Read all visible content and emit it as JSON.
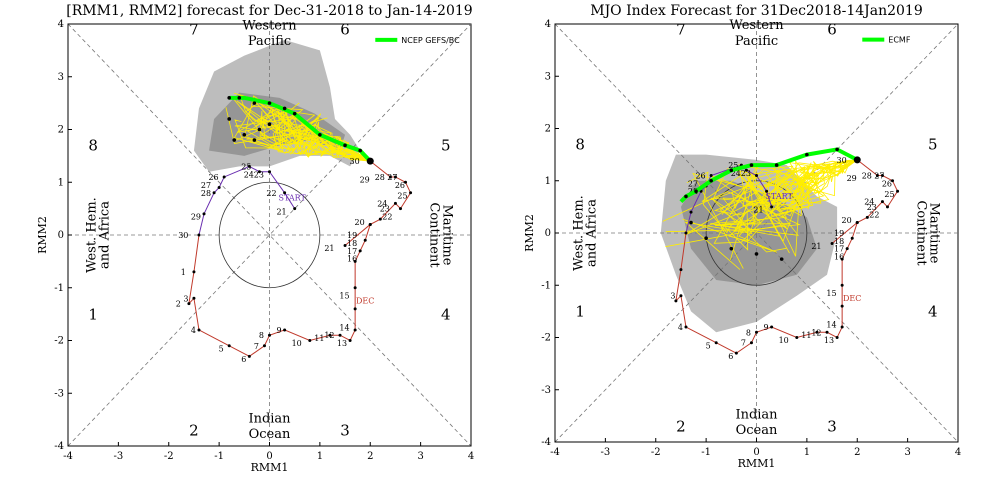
{
  "panels": [
    {
      "id": "left",
      "title": "[RMM1, RMM2] forecast for Dec-31-2018 to Jan-14-2019",
      "xlabel": "RMM1",
      "ylabel": "RMM2",
      "legend": "NCEP GEFS/BC",
      "xlim": [
        -4,
        4
      ],
      "ylim": [
        -4,
        4
      ],
      "xticks": [
        "-4",
        "-3",
        "-2",
        "-1",
        "0",
        "1",
        "2",
        "3",
        "4"
      ],
      "yticks": [
        "-4",
        "-3",
        "-2",
        "-1",
        "0",
        "1",
        "2",
        "3",
        "4"
      ],
      "phases": [
        "1",
        "2",
        "3",
        "4",
        "5",
        "6",
        "7",
        "8"
      ],
      "regions": {
        "top": [
          "Western",
          "Pacific"
        ],
        "bottom": [
          "Indian",
          "Ocean"
        ],
        "left": [
          "West. Hem.",
          "and Africa"
        ],
        "right": [
          "Maritime",
          "Continent"
        ]
      },
      "annotations": {
        "start": "START",
        "dec": "DEC"
      },
      "spread_outer": [
        [
          -1.5,
          1.6
        ],
        [
          -1.4,
          2.4
        ],
        [
          -1.1,
          3.1
        ],
        [
          -0.5,
          3.4
        ],
        [
          0.3,
          3.7
        ],
        [
          1.0,
          3.5
        ],
        [
          1.2,
          2.8
        ],
        [
          1.3,
          2.2
        ],
        [
          1.6,
          1.9
        ],
        [
          1.8,
          1.6
        ],
        [
          1.6,
          1.3
        ],
        [
          1.2,
          1.5
        ],
        [
          0.6,
          1.5
        ],
        [
          0.0,
          1.3
        ],
        [
          -0.6,
          1.3
        ],
        [
          -1.2,
          1.2
        ]
      ],
      "spread_inner": [
        [
          -1.2,
          1.6
        ],
        [
          -1.1,
          2.2
        ],
        [
          -0.6,
          2.7
        ],
        [
          0.2,
          2.6
        ],
        [
          0.9,
          2.3
        ],
        [
          1.5,
          1.9
        ],
        [
          1.4,
          1.6
        ],
        [
          0.8,
          1.8
        ],
        [
          0.2,
          1.7
        ],
        [
          -0.5,
          1.5
        ]
      ],
      "obs_days": [
        "21",
        "22",
        "23",
        "24",
        "25",
        "26",
        "27",
        "28",
        "29",
        "30",
        "1",
        "2",
        "3",
        "4",
        "5",
        "6",
        "7",
        "8",
        "9",
        "10",
        "11",
        "12",
        "13",
        "14",
        "15",
        "16",
        "17",
        "18",
        "19",
        "20",
        "21",
        "22",
        "23",
        "24",
        "25",
        "26",
        "27",
        "28",
        "29",
        "30"
      ],
      "obs_path": [
        [
          0.5,
          0.5
        ],
        [
          0.3,
          0.8
        ],
        [
          0.0,
          1.2
        ],
        [
          -0.2,
          1.2
        ],
        [
          -0.4,
          1.3
        ],
        [
          -0.9,
          1.1
        ],
        [
          -1.0,
          0.9
        ],
        [
          -1.1,
          0.8
        ],
        [
          -1.3,
          0.4
        ],
        [
          -1.4,
          0.0
        ],
        [
          -1.5,
          -0.7
        ],
        [
          -1.6,
          -1.3
        ],
        [
          -1.5,
          -1.2
        ],
        [
          -1.4,
          -1.8
        ],
        [
          -0.8,
          -2.1
        ],
        [
          -0.4,
          -2.3
        ],
        [
          -0.1,
          -2.1
        ],
        [
          0.0,
          -1.9
        ],
        [
          0.3,
          -1.8
        ],
        [
          0.8,
          -2.0
        ],
        [
          1.2,
          -1.9
        ],
        [
          1.4,
          -1.9
        ],
        [
          1.6,
          -2.0
        ],
        [
          1.7,
          -1.8
        ],
        [
          1.7,
          -1.4
        ],
        [
          1.7,
          -1.0
        ],
        [
          1.7,
          -0.5
        ],
        [
          1.8,
          -0.3
        ],
        [
          1.9,
          -0.1
        ],
        [
          2.0,
          0.2
        ],
        [
          1.5,
          -0.2
        ],
        [
          2.0,
          0.2
        ],
        [
          2.2,
          0.3
        ],
        [
          2.5,
          0.6
        ],
        [
          2.6,
          0.5
        ],
        [
          2.8,
          0.8
        ],
        [
          2.7,
          1.0
        ],
        [
          2.5,
          1.1
        ],
        [
          2.4,
          1.1
        ],
        [
          2.0,
          1.4
        ]
      ],
      "obs_labels": [
        {
          "t": "21",
          "x": 0.4,
          "y": 0.45
        },
        {
          "t": "22",
          "x": 0.2,
          "y": 0.8
        },
        {
          "t": "23",
          "x": -0.05,
          "y": 1.15
        },
        {
          "t": "24",
          "x": -0.25,
          "y": 1.15
        },
        {
          "t": "25",
          "x": -0.3,
          "y": 1.3
        },
        {
          "t": "26",
          "x": -0.95,
          "y": 1.1
        },
        {
          "t": "27",
          "x": -1.1,
          "y": 0.95
        },
        {
          "t": "28",
          "x": -1.1,
          "y": 0.8
        },
        {
          "t": "29",
          "x": -1.3,
          "y": 0.35
        },
        {
          "t": "30",
          "x": -1.55,
          "y": 0.0
        },
        {
          "t": "1",
          "x": -1.6,
          "y": -0.7
        },
        {
          "t": "2",
          "x": -1.7,
          "y": -1.3
        },
        {
          "t": "3",
          "x": -1.55,
          "y": -1.2
        },
        {
          "t": "4",
          "x": -1.4,
          "y": -1.8
        },
        {
          "t": "5",
          "x": -0.85,
          "y": -2.15
        },
        {
          "t": "6",
          "x": -0.4,
          "y": -2.35
        },
        {
          "t": "7",
          "x": -0.15,
          "y": -2.1
        },
        {
          "t": "8",
          "x": -0.05,
          "y": -1.9
        },
        {
          "t": "9",
          "x": 0.3,
          "y": -1.8
        },
        {
          "t": "10",
          "x": 0.7,
          "y": -2.05
        },
        {
          "t": "11",
          "x": 1.15,
          "y": -1.95
        },
        {
          "t": "12",
          "x": 1.35,
          "y": -1.9
        },
        {
          "t": "13",
          "x": 1.6,
          "y": -2.05
        },
        {
          "t": "14",
          "x": 1.65,
          "y": -1.75
        },
        {
          "t": "15",
          "x": 1.65,
          "y": -1.15
        },
        {
          "t": "16",
          "x": 1.8,
          "y": -0.45
        },
        {
          "t": "17",
          "x": 1.8,
          "y": -0.3
        },
        {
          "t": "18",
          "x": 1.8,
          "y": -0.15
        },
        {
          "t": "19",
          "x": 1.8,
          "y": 0.0
        },
        {
          "t": "20",
          "x": 1.95,
          "y": 0.25
        },
        {
          "t": "21",
          "x": 1.35,
          "y": -0.25
        },
        {
          "t": "22",
          "x": 2.5,
          "y": 0.35
        },
        {
          "t": "23",
          "x": 2.45,
          "y": 0.5
        },
        {
          "t": "24",
          "x": 2.4,
          "y": 0.6
        },
        {
          "t": "25",
          "x": 2.8,
          "y": 0.75
        },
        {
          "t": "26",
          "x": 2.75,
          "y": 0.95
        },
        {
          "t": "27",
          "x": 2.6,
          "y": 1.1
        },
        {
          "t": "28",
          "x": 2.35,
          "y": 1.1
        },
        {
          "t": "29",
          "x": 2.05,
          "y": 1.05
        },
        {
          "t": "30",
          "x": 1.85,
          "y": 1.4
        }
      ],
      "forecast_path": [
        [
          2.0,
          1.4
        ],
        [
          1.8,
          1.6
        ],
        [
          1.5,
          1.7
        ],
        [
          1.0,
          1.9
        ],
        [
          0.5,
          2.3
        ],
        [
          0.0,
          2.5
        ],
        [
          -0.5,
          2.6
        ],
        [
          -0.7,
          2.6
        ],
        [
          -0.8,
          2.6
        ]
      ],
      "forecast_dots": [
        [
          2.0,
          1.4
        ],
        [
          1.8,
          1.6
        ],
        [
          1.5,
          1.7
        ],
        [
          1.0,
          1.9
        ],
        [
          0.5,
          2.3
        ],
        [
          0.3,
          2.4
        ],
        [
          0.0,
          2.5
        ],
        [
          -0.3,
          2.5
        ],
        [
          -0.6,
          2.6
        ],
        [
          -0.8,
          2.6
        ],
        [
          -0.8,
          2.2
        ],
        [
          -0.5,
          1.9
        ],
        [
          0.0,
          2.1
        ],
        [
          -0.3,
          1.8
        ],
        [
          -0.7,
          1.8
        ],
        [
          -0.2,
          2.0
        ]
      ],
      "spaghetti_center": [
        -0.2,
        2.2
      ],
      "spaghetti_spread": 0.8
    },
    {
      "id": "right",
      "title": "MJO Index Forecast for 31Dec2018-14Jan2019",
      "xlabel": "RMM1",
      "ylabel": "RMM2",
      "legend": "ECMF",
      "xlim": [
        -4,
        4
      ],
      "ylim": [
        -4,
        4
      ],
      "xticks": [
        "-4",
        "-3",
        "-2",
        "-1",
        "0",
        "1",
        "2",
        "3",
        "4"
      ],
      "yticks": [
        "-4",
        "-3",
        "-2",
        "-1",
        "0",
        "1",
        "2",
        "3",
        "4"
      ],
      "phases": [
        "1",
        "2",
        "3",
        "4",
        "5",
        "6",
        "7",
        "8"
      ],
      "regions": {
        "top": [
          "Western",
          "Pacific"
        ],
        "bottom": [
          "Indian",
          "Ocean"
        ],
        "left": [
          "West. Hem.",
          "and Africa"
        ],
        "right": [
          "Maritime",
          "Continent"
        ]
      },
      "annotations": {
        "start": "START",
        "dec": "DEC"
      },
      "spread_outer": [
        [
          -1.8,
          1.0
        ],
        [
          -1.6,
          1.5
        ],
        [
          -1.0,
          1.5
        ],
        [
          0.0,
          1.4
        ],
        [
          0.6,
          1.3
        ],
        [
          1.2,
          0.7
        ],
        [
          1.6,
          0.5
        ],
        [
          1.6,
          0.0
        ],
        [
          1.4,
          -0.8
        ],
        [
          0.8,
          -1.2
        ],
        [
          0.0,
          -1.7
        ],
        [
          -0.8,
          -1.9
        ],
        [
          -1.3,
          -1.5
        ],
        [
          -1.6,
          -0.8
        ],
        [
          -1.9,
          0.0
        ]
      ],
      "spread_inner": [
        [
          -1.5,
          0.5
        ],
        [
          -1.2,
          1.0
        ],
        [
          -0.5,
          1.0
        ],
        [
          0.3,
          0.7
        ],
        [
          1.0,
          0.3
        ],
        [
          1.2,
          -0.3
        ],
        [
          0.8,
          -0.8
        ],
        [
          0.0,
          -1.0
        ],
        [
          -0.8,
          -0.9
        ],
        [
          -1.3,
          -0.3
        ]
      ],
      "obs_days": [],
      "obs_path": [
        [
          0.3,
          0.5
        ],
        [
          0.2,
          0.8
        ],
        [
          0.0,
          1.1
        ],
        [
          -0.2,
          1.2
        ],
        [
          -0.3,
          1.3
        ],
        [
          -0.9,
          1.1
        ],
        [
          -1.0,
          0.9
        ],
        [
          -1.1,
          0.8
        ],
        [
          -1.3,
          0.4
        ],
        [
          -1.4,
          0.0
        ],
        [
          -1.5,
          -0.7
        ],
        [
          -1.6,
          -1.3
        ],
        [
          -1.5,
          -1.2
        ],
        [
          -1.4,
          -1.8
        ],
        [
          -0.8,
          -2.1
        ],
        [
          -0.4,
          -2.3
        ],
        [
          -0.1,
          -2.1
        ],
        [
          0.0,
          -1.9
        ],
        [
          0.3,
          -1.8
        ],
        [
          0.8,
          -2.0
        ],
        [
          1.2,
          -1.9
        ],
        [
          1.4,
          -1.9
        ],
        [
          1.6,
          -2.0
        ],
        [
          1.7,
          -1.8
        ],
        [
          1.7,
          -1.4
        ],
        [
          1.7,
          -1.0
        ],
        [
          1.7,
          -0.5
        ],
        [
          1.8,
          -0.3
        ],
        [
          1.9,
          -0.1
        ],
        [
          2.0,
          0.2
        ],
        [
          1.5,
          -0.2
        ],
        [
          2.0,
          0.2
        ],
        [
          2.2,
          0.3
        ],
        [
          2.5,
          0.6
        ],
        [
          2.6,
          0.5
        ],
        [
          2.8,
          0.8
        ],
        [
          2.7,
          1.0
        ],
        [
          2.5,
          1.1
        ],
        [
          2.4,
          1.1
        ],
        [
          2.0,
          1.4
        ]
      ],
      "obs_labels": [
        {
          "t": "21",
          "x": 0.2,
          "y": 0.45
        },
        {
          "t": "23",
          "x": -0.05,
          "y": 1.15
        },
        {
          "t": "24",
          "x": -0.25,
          "y": 1.15
        },
        {
          "t": "25",
          "x": -0.3,
          "y": 1.3
        },
        {
          "t": "26",
          "x": -0.95,
          "y": 1.1
        },
        {
          "t": "27",
          "x": -1.1,
          "y": 0.95
        },
        {
          "t": "28",
          "x": -1.1,
          "y": 0.8
        },
        {
          "t": "3",
          "x": -1.55,
          "y": -1.2
        },
        {
          "t": "4",
          "x": -1.4,
          "y": -1.8
        },
        {
          "t": "5",
          "x": -0.85,
          "y": -2.15
        },
        {
          "t": "6",
          "x": -0.4,
          "y": -2.35
        },
        {
          "t": "7",
          "x": -0.15,
          "y": -2.1
        },
        {
          "t": "8",
          "x": -0.05,
          "y": -1.9
        },
        {
          "t": "9",
          "x": 0.3,
          "y": -1.8
        },
        {
          "t": "10",
          "x": 0.7,
          "y": -2.05
        },
        {
          "t": "11",
          "x": 1.15,
          "y": -1.95
        },
        {
          "t": "12",
          "x": 1.35,
          "y": -1.9
        },
        {
          "t": "13",
          "x": 1.6,
          "y": -2.05
        },
        {
          "t": "14",
          "x": 1.65,
          "y": -1.75
        },
        {
          "t": "15",
          "x": 1.65,
          "y": -1.15
        },
        {
          "t": "16",
          "x": 1.8,
          "y": -0.45
        },
        {
          "t": "17",
          "x": 1.8,
          "y": -0.3
        },
        {
          "t": "18",
          "x": 1.8,
          "y": -0.15
        },
        {
          "t": "19",
          "x": 1.8,
          "y": 0.0
        },
        {
          "t": "20",
          "x": 1.95,
          "y": 0.25
        },
        {
          "t": "21",
          "x": 1.35,
          "y": -0.25
        },
        {
          "t": "22",
          "x": 2.5,
          "y": 0.35
        },
        {
          "t": "23",
          "x": 2.45,
          "y": 0.5
        },
        {
          "t": "24",
          "x": 2.4,
          "y": 0.6
        },
        {
          "t": "25",
          "x": 2.8,
          "y": 0.75
        },
        {
          "t": "26",
          "x": 2.75,
          "y": 0.95
        },
        {
          "t": "27",
          "x": 2.6,
          "y": 1.1
        },
        {
          "t": "28",
          "x": 2.35,
          "y": 1.1
        },
        {
          "t": "29",
          "x": 2.05,
          "y": 1.05
        },
        {
          "t": "30",
          "x": 1.85,
          "y": 1.4
        }
      ],
      "forecast_path": [
        [
          2.0,
          1.4
        ],
        [
          1.6,
          1.6
        ],
        [
          1.0,
          1.5
        ],
        [
          0.4,
          1.3
        ],
        [
          -0.1,
          1.3
        ],
        [
          -0.5,
          1.2
        ],
        [
          -0.9,
          1.0
        ],
        [
          -1.2,
          0.8
        ],
        [
          -1.4,
          0.7
        ],
        [
          -1.5,
          0.6
        ]
      ],
      "forecast_dots": [
        [
          2.0,
          1.4
        ],
        [
          1.6,
          1.6
        ],
        [
          1.0,
          1.5
        ],
        [
          0.4,
          1.3
        ],
        [
          -0.1,
          1.3
        ],
        [
          -0.5,
          1.2
        ],
        [
          -0.9,
          1.0
        ],
        [
          -1.2,
          0.8
        ],
        [
          -1.4,
          0.7
        ],
        [
          -1.3,
          0.2
        ],
        [
          -1.0,
          -0.1
        ],
        [
          -0.5,
          -0.3
        ],
        [
          0.0,
          -0.4
        ],
        [
          0.5,
          -0.5
        ]
      ],
      "spaghetti_center": [
        -0.6,
        0.3
      ],
      "spaghetti_spread": 1.3
    }
  ]
}
